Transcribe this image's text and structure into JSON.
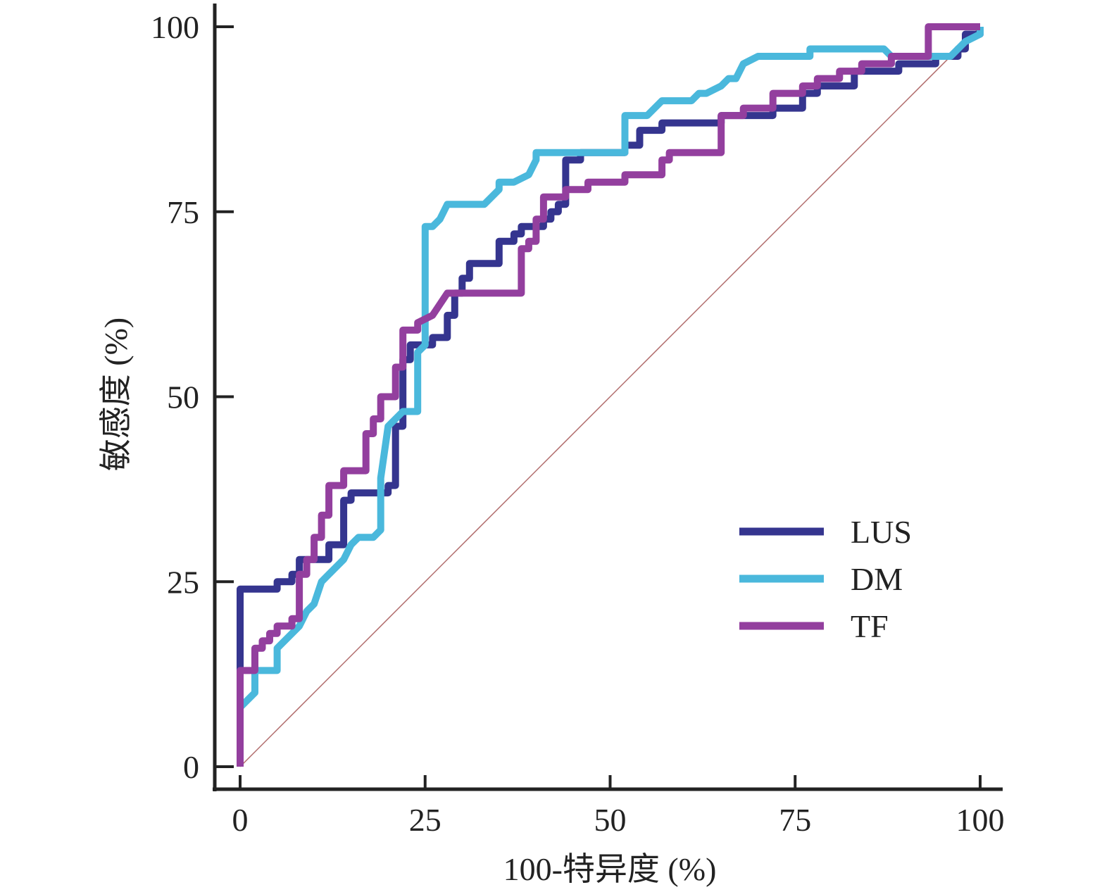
{
  "chart_data": {
    "type": "line",
    "title": "",
    "xlabel": "100-特异度 (%)",
    "ylabel": "敏感度 (%)",
    "xlim": [
      0,
      100
    ],
    "ylim": [
      0,
      100
    ],
    "x_ticks": [
      "0",
      "25",
      "50",
      "75",
      "100"
    ],
    "y_ticks": [
      "0",
      "25",
      "50",
      "75",
      "100"
    ],
    "legend_position": "bottom-right",
    "reference_line": {
      "name": "reference",
      "points": [
        [
          0,
          0
        ],
        [
          100,
          100
        ]
      ],
      "color": "#b06a6a"
    },
    "series": [
      {
        "name": "LUS",
        "color": "#35358f",
        "points": [
          [
            0,
            0
          ],
          [
            0,
            13
          ],
          [
            0,
            24
          ],
          [
            5,
            24
          ],
          [
            5,
            25
          ],
          [
            7,
            25
          ],
          [
            7,
            26
          ],
          [
            8,
            26
          ],
          [
            8,
            28
          ],
          [
            12,
            28
          ],
          [
            12,
            30
          ],
          [
            14,
            30
          ],
          [
            14,
            36
          ],
          [
            15,
            36
          ],
          [
            15,
            37
          ],
          [
            20,
            37
          ],
          [
            20,
            38
          ],
          [
            21,
            38
          ],
          [
            21,
            46
          ],
          [
            22,
            46
          ],
          [
            22,
            55
          ],
          [
            23,
            55
          ],
          [
            23,
            57
          ],
          [
            26,
            57
          ],
          [
            26,
            58
          ],
          [
            28,
            58
          ],
          [
            28,
            61
          ],
          [
            29,
            61
          ],
          [
            29,
            64
          ],
          [
            30,
            64
          ],
          [
            30,
            66
          ],
          [
            31,
            66
          ],
          [
            31,
            68
          ],
          [
            35,
            68
          ],
          [
            35,
            71
          ],
          [
            37,
            71
          ],
          [
            37,
            72
          ],
          [
            38,
            72
          ],
          [
            38,
            73
          ],
          [
            41,
            73
          ],
          [
            41,
            74
          ],
          [
            42,
            74
          ],
          [
            42,
            75
          ],
          [
            43,
            75
          ],
          [
            43,
            76
          ],
          [
            44,
            76
          ],
          [
            44,
            82
          ],
          [
            46,
            82
          ],
          [
            46,
            83
          ],
          [
            52,
            83
          ],
          [
            52,
            84
          ],
          [
            54,
            84
          ],
          [
            54,
            86
          ],
          [
            57,
            86
          ],
          [
            57,
            87
          ],
          [
            65,
            87
          ],
          [
            65,
            88
          ],
          [
            72,
            88
          ],
          [
            72,
            89
          ],
          [
            76,
            89
          ],
          [
            76,
            91
          ],
          [
            78,
            91
          ],
          [
            78,
            92
          ],
          [
            83,
            92
          ],
          [
            83,
            94
          ],
          [
            89,
            94
          ],
          [
            89,
            95
          ],
          [
            94,
            95
          ],
          [
            94,
            96
          ],
          [
            97,
            96
          ],
          [
            97,
            97
          ],
          [
            98,
            97
          ],
          [
            98,
            98
          ],
          [
            98,
            99
          ],
          [
            100,
            99
          ],
          [
            100,
            100
          ]
        ]
      },
      {
        "name": "DM",
        "color": "#4ab8dc",
        "points": [
          [
            0,
            0
          ],
          [
            0,
            8
          ],
          [
            1,
            9
          ],
          [
            2,
            10
          ],
          [
            2,
            13
          ],
          [
            5,
            13
          ],
          [
            5,
            16
          ],
          [
            6,
            17
          ],
          [
            7,
            18
          ],
          [
            8,
            19
          ],
          [
            9,
            21
          ],
          [
            10,
            22
          ],
          [
            11,
            25
          ],
          [
            12,
            26
          ],
          [
            13,
            27
          ],
          [
            14,
            28
          ],
          [
            15,
            30
          ],
          [
            16,
            31
          ],
          [
            18,
            31
          ],
          [
            19,
            32
          ],
          [
            19,
            39
          ],
          [
            20,
            46
          ],
          [
            21,
            47
          ],
          [
            22,
            48
          ],
          [
            24,
            48
          ],
          [
            24,
            56
          ],
          [
            25,
            57
          ],
          [
            25,
            73
          ],
          [
            26,
            73
          ],
          [
            27,
            74
          ],
          [
            28,
            76
          ],
          [
            33,
            76
          ],
          [
            35,
            78
          ],
          [
            35,
            79
          ],
          [
            37,
            79
          ],
          [
            39,
            80
          ],
          [
            40,
            82
          ],
          [
            40,
            83
          ],
          [
            52,
            83
          ],
          [
            52,
            88
          ],
          [
            55,
            88
          ],
          [
            57,
            90
          ],
          [
            61,
            90
          ],
          [
            62,
            91
          ],
          [
            63,
            91
          ],
          [
            65,
            92
          ],
          [
            66,
            93
          ],
          [
            67,
            93
          ],
          [
            68,
            95
          ],
          [
            70,
            96
          ],
          [
            77,
            96
          ],
          [
            77,
            97
          ],
          [
            87,
            97
          ],
          [
            88,
            96
          ],
          [
            96,
            96
          ],
          [
            98,
            98
          ],
          [
            100,
            99
          ],
          [
            100,
            100
          ]
        ]
      },
      {
        "name": "TF",
        "color": "#933f9e",
        "points": [
          [
            0,
            0
          ],
          [
            0,
            13
          ],
          [
            2,
            13
          ],
          [
            2,
            16
          ],
          [
            3,
            16
          ],
          [
            3,
            17
          ],
          [
            4,
            17
          ],
          [
            4,
            18
          ],
          [
            5,
            18
          ],
          [
            5,
            19
          ],
          [
            7,
            19
          ],
          [
            7,
            20
          ],
          [
            8,
            20
          ],
          [
            8,
            26
          ],
          [
            9,
            26
          ],
          [
            9,
            28
          ],
          [
            10,
            28
          ],
          [
            10,
            31
          ],
          [
            11,
            31
          ],
          [
            11,
            34
          ],
          [
            12,
            34
          ],
          [
            12,
            38
          ],
          [
            14,
            38
          ],
          [
            14,
            40
          ],
          [
            17,
            40
          ],
          [
            17,
            45
          ],
          [
            18,
            45
          ],
          [
            18,
            47
          ],
          [
            19,
            47
          ],
          [
            19,
            50
          ],
          [
            21,
            50
          ],
          [
            21,
            54
          ],
          [
            22,
            54
          ],
          [
            22,
            59
          ],
          [
            24,
            59
          ],
          [
            24,
            60
          ],
          [
            26,
            61
          ],
          [
            28,
            64
          ],
          [
            38,
            64
          ],
          [
            38,
            70
          ],
          [
            39,
            70
          ],
          [
            39,
            71
          ],
          [
            40,
            71
          ],
          [
            40,
            74
          ],
          [
            41,
            74
          ],
          [
            41,
            77
          ],
          [
            44,
            77
          ],
          [
            44,
            78
          ],
          [
            47,
            78
          ],
          [
            47,
            79
          ],
          [
            52,
            79
          ],
          [
            52,
            80
          ],
          [
            57,
            80
          ],
          [
            57,
            82
          ],
          [
            58,
            82
          ],
          [
            58,
            83
          ],
          [
            65,
            83
          ],
          [
            65,
            88
          ],
          [
            68,
            88
          ],
          [
            68,
            89
          ],
          [
            72,
            89
          ],
          [
            72,
            91
          ],
          [
            76,
            91
          ],
          [
            76,
            92
          ],
          [
            78,
            92
          ],
          [
            78,
            93
          ],
          [
            81,
            93
          ],
          [
            81,
            94
          ],
          [
            84,
            94
          ],
          [
            84,
            95
          ],
          [
            88,
            95
          ],
          [
            88,
            96
          ],
          [
            93,
            96
          ],
          [
            93,
            100
          ],
          [
            100,
            100
          ]
        ]
      }
    ]
  }
}
